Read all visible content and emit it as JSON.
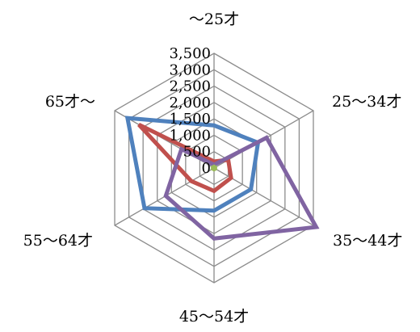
{
  "chart_data": {
    "type": "radar",
    "categories": [
      "～25才",
      "25～34才",
      "35～44才",
      "45～54才",
      "55～64才",
      "65才～"
    ],
    "rlim": [
      0,
      3500
    ],
    "ticks": [
      0,
      500,
      1000,
      1500,
      2000,
      2500,
      3000,
      3500
    ],
    "tick_labels": [
      "0",
      "500",
      "1,000",
      "1,500",
      "2,000",
      "2,500",
      "3,000",
      "3,500"
    ],
    "grid": true,
    "legend": "none",
    "series": [
      {
        "color": "#4f81bd",
        "values": [
          1300,
          1550,
          1300,
          1300,
          2450,
          3050
        ]
      },
      {
        "color": "#c0504d",
        "values": [
          200,
          500,
          600,
          700,
          800,
          2650
        ]
      },
      {
        "color": "#8064a2",
        "values": [
          100,
          1850,
          3600,
          2150,
          1700,
          1150
        ]
      },
      {
        "color": "#9bbb59",
        "values": [
          40,
          40,
          40,
          40,
          40,
          40
        ]
      }
    ]
  }
}
